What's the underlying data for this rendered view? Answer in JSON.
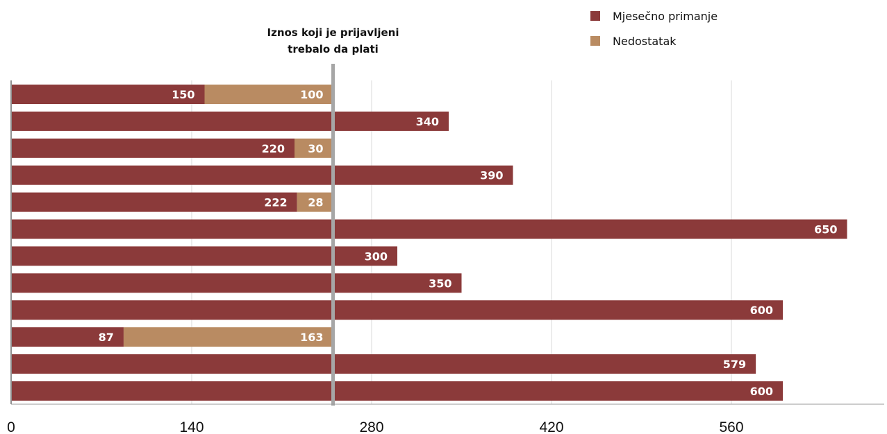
{
  "chart_data": {
    "type": "bar",
    "orientation": "horizontal",
    "stacked": true,
    "xlim": [
      0,
      680
    ],
    "xticks": [
      0,
      140,
      280,
      420,
      560
    ],
    "grid": true,
    "legend_position": "top-right",
    "series": [
      {
        "name": "Mjesečno primanje",
        "color": "#8b3a3a",
        "values": [
          150,
          340,
          220,
          390,
          222,
          650,
          300,
          350,
          600,
          87,
          579,
          600
        ]
      },
      {
        "name": "Nedostatak",
        "color": "#b98b62",
        "values": [
          100,
          0,
          30,
          0,
          28,
          0,
          0,
          0,
          0,
          163,
          0,
          0
        ]
      }
    ],
    "reference_line": {
      "value": 250,
      "color": "#a6a6a6",
      "label_lines": [
        "Iznos koji je prijavljeni",
        "trebalo da plati"
      ]
    }
  }
}
